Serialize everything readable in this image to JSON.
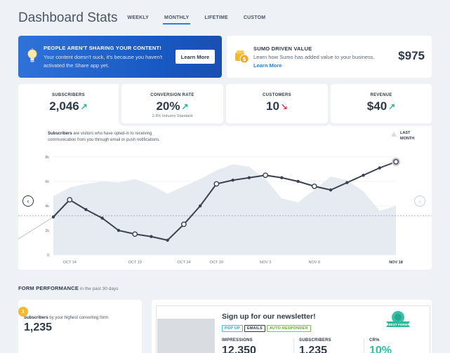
{
  "header": {
    "title": "Dashboard Stats",
    "tabs": [
      {
        "label": "WEEKLY",
        "active": false
      },
      {
        "label": "MONTHLY",
        "active": true
      },
      {
        "label": "LIFETIME",
        "active": false
      },
      {
        "label": "CUSTOM",
        "active": false
      }
    ]
  },
  "promo": {
    "title": "PEOPLE AREN'T SHARING YOUR CONTENT!",
    "body": "Your content doesn't suck, it's because you haven't activated the Share app yet.",
    "button": "Learn More",
    "icon": "lightbulb-icon"
  },
  "sumo_value": {
    "title": "SUMO DRIVEN VALUE",
    "body": "Learn how Sumo has added value to your business.",
    "link": "Learn More",
    "amount": "$975",
    "icon": "coins-icon"
  },
  "stats": [
    {
      "label": "SUBSCRIBERS",
      "value": "2,046",
      "trend": "up",
      "sub": ""
    },
    {
      "label": "CONVERSION RATE",
      "value": "20%",
      "trend": "up",
      "sub": "2.9% Industry Standard"
    },
    {
      "label": "CUSTOMERS",
      "value": "10",
      "trend": "down",
      "sub": ""
    },
    {
      "label": "REVENUE",
      "value": "$40",
      "trend": "up",
      "sub": ""
    }
  ],
  "chart_desc": {
    "bold": "Subscribers",
    "rest": " are visitors who have opted-in to receiving communication from you through email or push notifications."
  },
  "legend_label": "LAST MONTH",
  "colors": {
    "accent": "#2f7de1",
    "promo": "#1a5fcb",
    "teal": "#29b59a",
    "red": "#e03a64",
    "area": "#e6ebf2",
    "line": "#3a4250"
  },
  "chart_data": {
    "type": "line",
    "x_labels": [
      "OCT 14",
      "OCT 19",
      "OCT 24",
      "OCT 29",
      "NOV 3",
      "NOV 8",
      "NOV 18"
    ],
    "y_ticks": [
      "0",
      "2k",
      "4k",
      "6k",
      "8k"
    ],
    "ylim": [
      0,
      8000
    ],
    "series": [
      {
        "values": [
          3100,
          4500,
          3700,
          3000,
          2000,
          1700,
          1500,
          1200,
          2500,
          4000,
          5800,
          6100,
          6300,
          6500,
          6300,
          6000,
          5600,
          5300,
          5900,
          6500,
          7100,
          7600
        ]
      }
    ],
    "last_month_area": [
      4800,
      5500,
      5800,
      6000,
      5900,
      6200,
      5700,
      5000,
      5600,
      6200,
      6900,
      7400,
      7200,
      6200,
      4600,
      4300,
      5300,
      6400,
      6100,
      5200,
      3600,
      4000
    ],
    "baseline": 3200,
    "legend": "top-right"
  },
  "form_performance": {
    "title": "FORM PERFORMANCE",
    "subtitle": " in the past 30 days",
    "rank": "1",
    "left_label_bold": "Subscribers",
    "left_label_rest": " by your highest converting form",
    "left_value": "1,235",
    "form_title": "Sign up for our newsletter!",
    "tags": [
      "POP UP",
      "EMAILS",
      "AUTO RESPONDER"
    ],
    "badge": "BEST FORM",
    "metrics": [
      {
        "label": "IMPRESSIONS",
        "value": "12,350"
      },
      {
        "label": "SUBSCRIBERS",
        "value": "1,235"
      },
      {
        "label": "CR%",
        "value": "10%"
      }
    ]
  }
}
